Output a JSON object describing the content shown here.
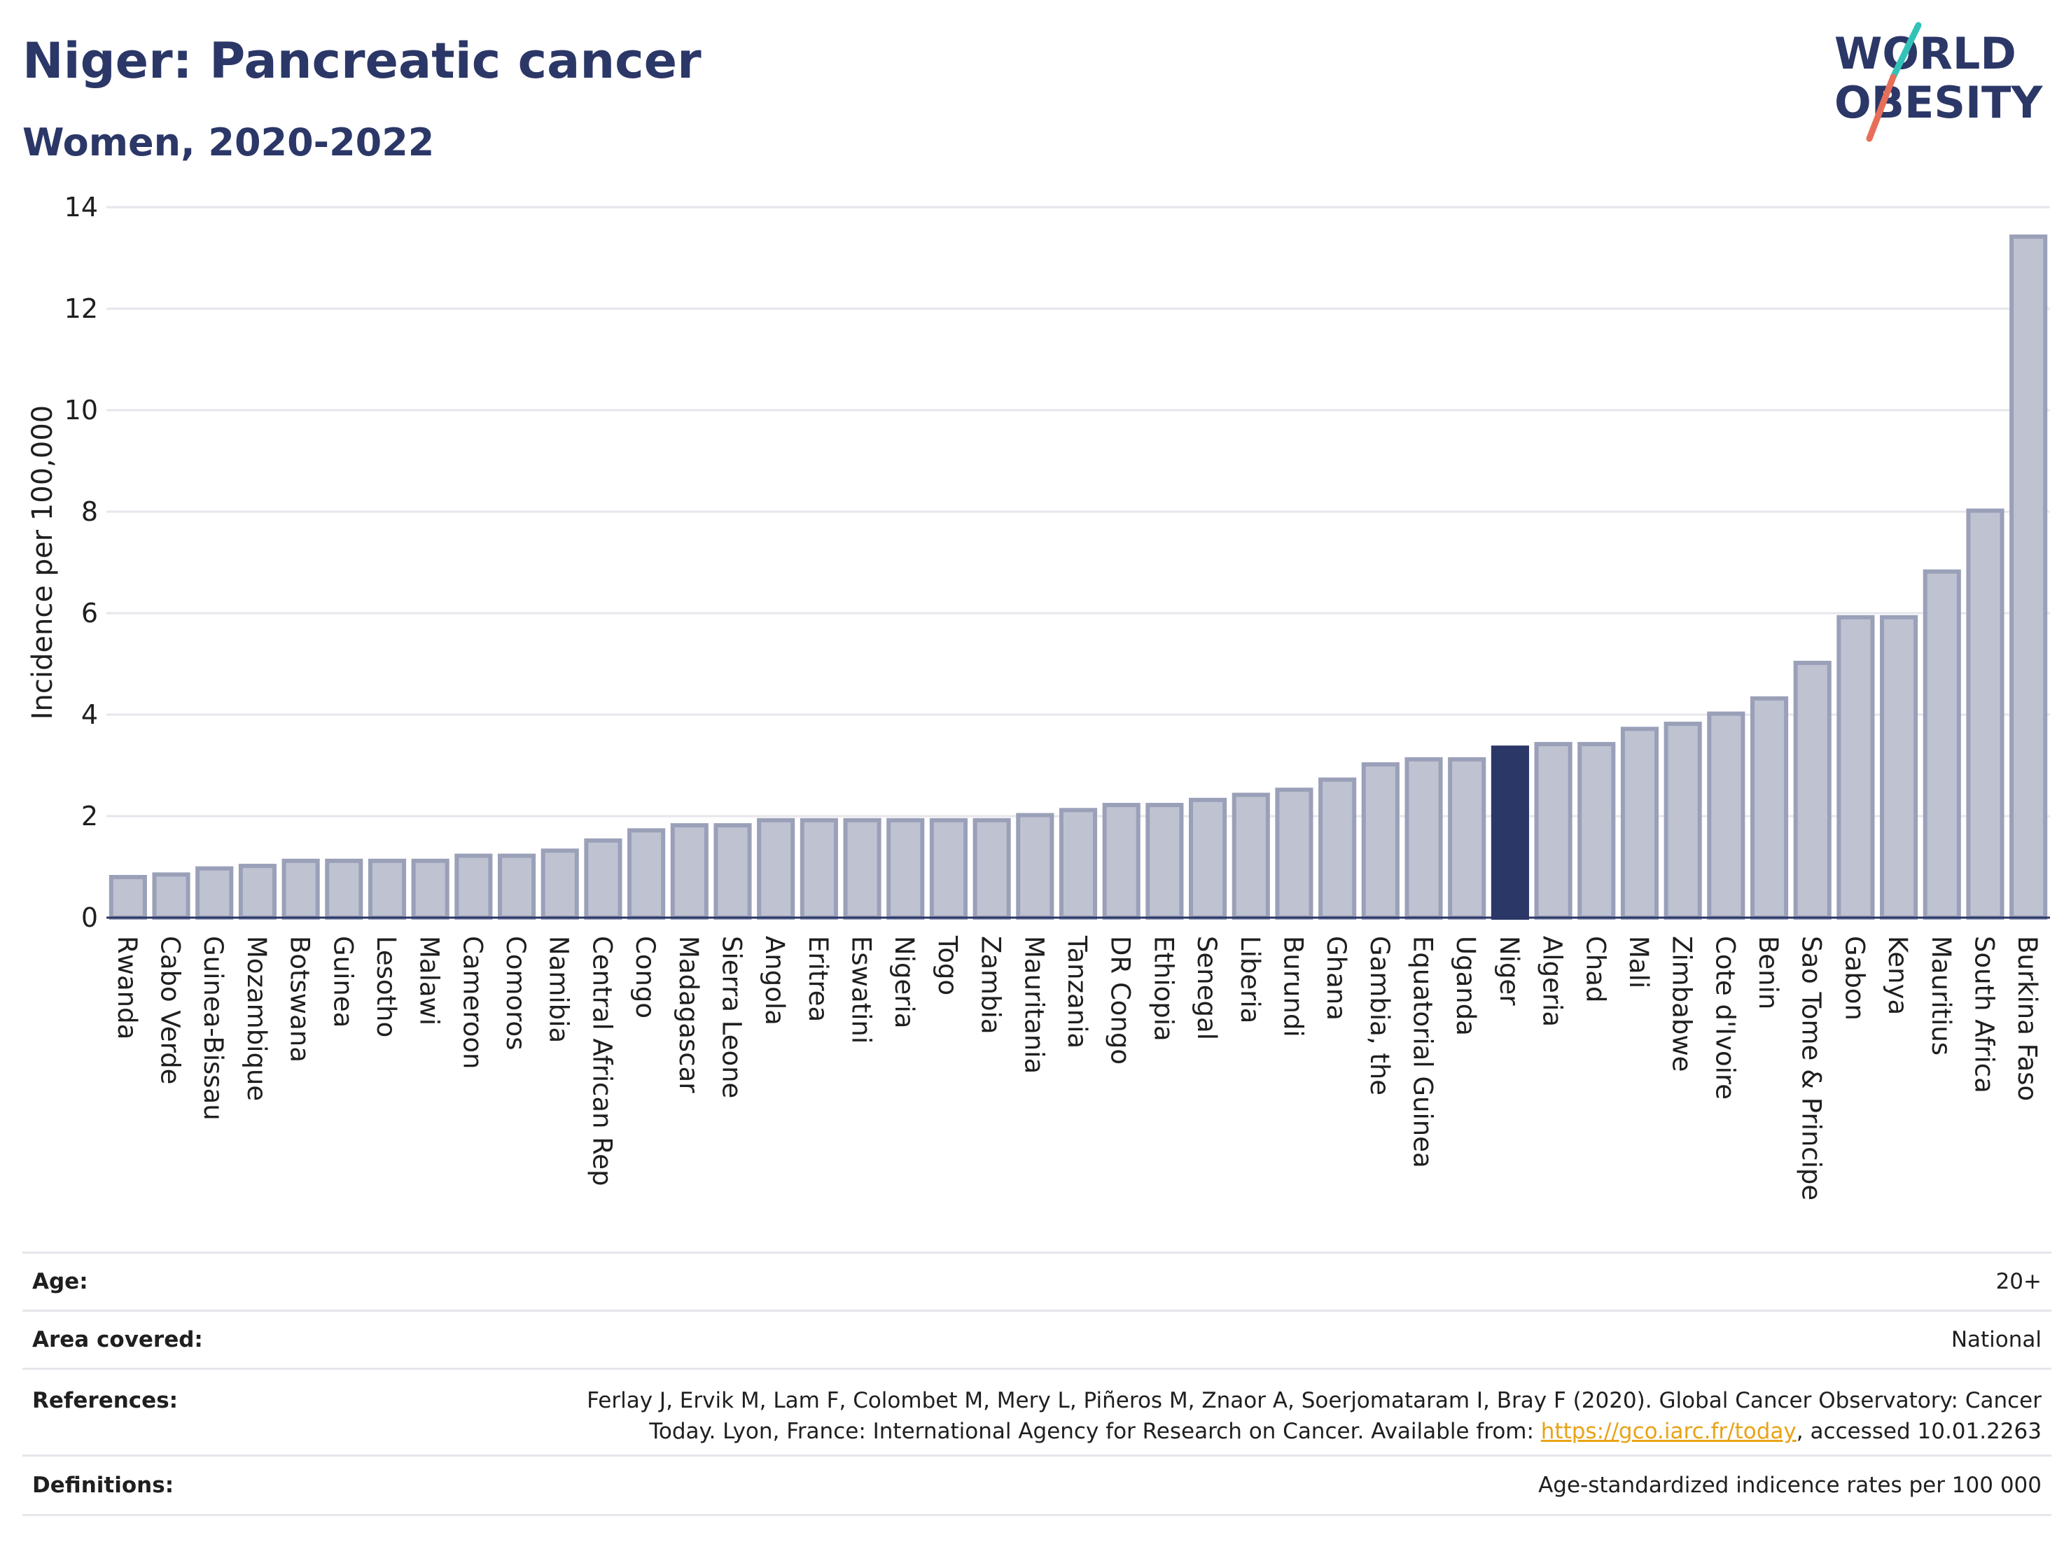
{
  "title": "Niger: Pancreatic cancer",
  "subtitle": "Women, 2020-2022",
  "logo": {
    "line1": "WORLD",
    "line2": "OBESITY",
    "slash_colors": [
      "#33c2b8",
      "#e76f5a"
    ],
    "text_color": "#2b3767"
  },
  "colors": {
    "bar": "#bfc2d1",
    "bar_border": "#9aa0b8",
    "highlight": "#2b3767",
    "grid": "#e6e6ec",
    "axis": "#2b3767"
  },
  "chart_data": {
    "type": "bar",
    "highlight": "Niger",
    "ylabel": "Incidence per 100,000",
    "ylim": [
      0,
      14
    ],
    "yticks": [
      0,
      2,
      4,
      6,
      8,
      10,
      12,
      14
    ],
    "grid": true,
    "categories": [
      "Rwanda",
      "Cabo Verde",
      "Guinea-Bissau",
      "Mozambique",
      "Botswana",
      "Guinea",
      "Lesotho",
      "Malawi",
      "Cameroon",
      "Comoros",
      "Namibia",
      "Central African Rep",
      "Congo",
      "Madagascar",
      "Sierra Leone",
      "Angola",
      "Eritrea",
      "Eswatini",
      "Nigeria",
      "Togo",
      "Zambia",
      "Mauritania",
      "Tanzania",
      "DR Congo",
      "Ethiopia",
      "Senegal",
      "Liberia",
      "Burundi",
      "Ghana",
      "Gambia, the",
      "Equatorial Guinea",
      "Uganda",
      "Niger",
      "Algeria",
      "Chad",
      "Mali",
      "Zimbabwe",
      "Cote d'Ivoire",
      "Benin",
      "Sao Tome & Principe",
      "Gabon",
      "Kenya",
      "Mauritius",
      "South Africa",
      "Burkina Faso"
    ],
    "values": [
      0.8,
      0.85,
      0.97,
      1.02,
      1.12,
      1.12,
      1.12,
      1.12,
      1.22,
      1.22,
      1.32,
      1.52,
      1.72,
      1.82,
      1.82,
      1.92,
      1.92,
      1.92,
      1.92,
      1.92,
      1.92,
      2.02,
      2.12,
      2.22,
      2.22,
      2.32,
      2.42,
      2.52,
      2.72,
      3.02,
      3.12,
      3.12,
      3.35,
      3.42,
      3.42,
      3.72,
      3.82,
      4.02,
      4.32,
      5.02,
      5.92,
      5.92,
      6.82,
      8.02,
      13.42
    ]
  },
  "footer": {
    "rows": [
      {
        "key": "Age:",
        "value": "20+"
      },
      {
        "key": "Area covered:",
        "value": "National"
      },
      {
        "key": "References:",
        "value_lines": [
          "Ferlay J, Ervik M, Lam F, Colombet M, Mery L, Piñeros M, Znaor A, Soerjomataram I, Bray F (2020). Global Cancer Observatory: Cancer"
        ],
        "value_pre": "Today. Lyon, France: International Agency for Research on Cancer. Available from: ",
        "link": "https://gco.iarc.fr/today",
        "value_post": ", accessed 10.01.2263"
      },
      {
        "key": "Definitions:",
        "value": "Age-standardized indicence rates per 100 000"
      }
    ]
  }
}
